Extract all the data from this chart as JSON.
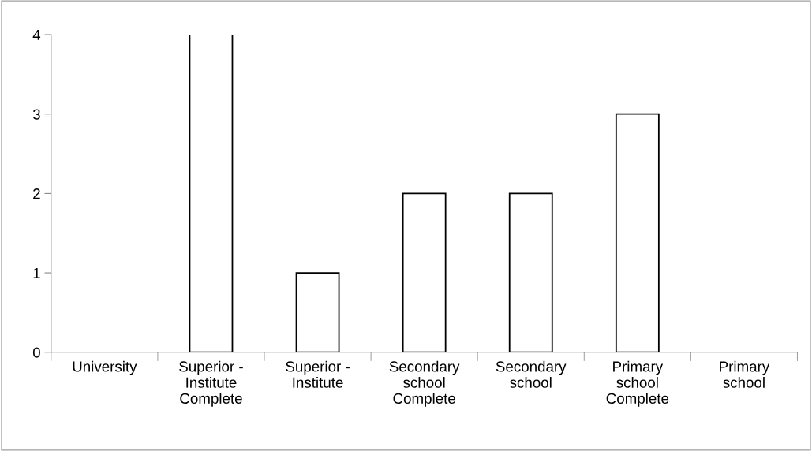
{
  "chart_data": {
    "type": "bar",
    "categories": [
      "University",
      "Superior -\nInstitute\nComplete",
      "Superior -\nInstitute",
      "Secondary\nschool\nComplete",
      "Secondary\nschool",
      "Primary\nschool\nComplete",
      "Primary\nschool"
    ],
    "values": [
      0,
      4,
      1,
      2,
      2,
      3,
      0
    ],
    "color": "#ffffff",
    "ylim": [
      0,
      4
    ],
    "yticks": [
      0,
      1,
      2,
      3,
      4
    ],
    "grid": false,
    "legend": false
  }
}
